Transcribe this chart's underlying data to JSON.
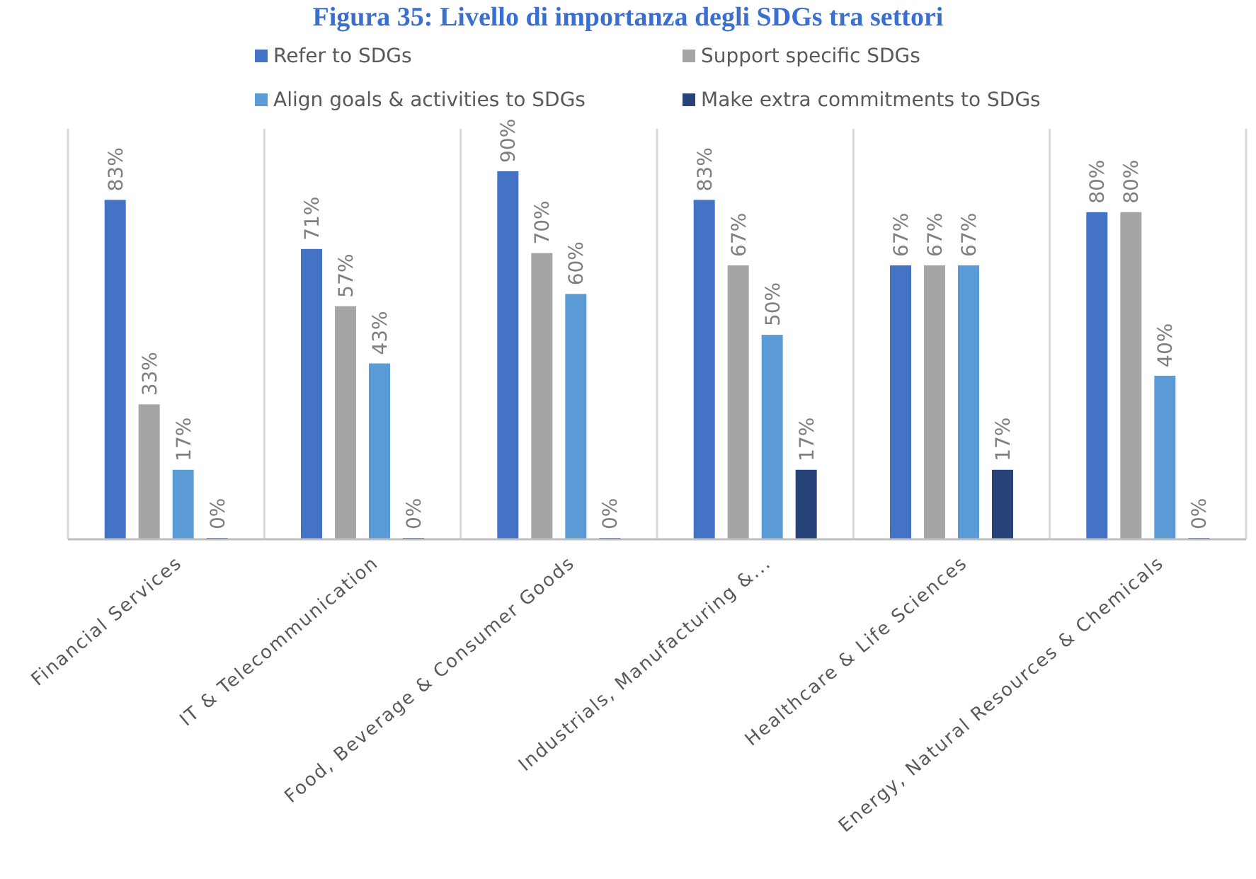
{
  "chart_data": {
    "type": "bar",
    "title": "Figura 35: Livello di importanza degli SDGs tra settori",
    "categories": [
      "Financial Services",
      "IT & Telecommunication",
      "Food, Beverage & Consumer Goods",
      "Industrials, Manufacturing &...",
      "Healthcare & Life Sciences",
      "Energy, Natural Resources & Chemicals"
    ],
    "series": [
      {
        "name": "Refer to SDGs",
        "color": "#4472c4",
        "values": [
          83,
          71,
          90,
          83,
          67,
          80
        ],
        "value_labels": [
          "83%",
          "71%",
          "90%",
          "83%",
          "67%",
          "80%"
        ]
      },
      {
        "name": "Support specific SDGs",
        "color": "#a5a5a5",
        "values": [
          33,
          57,
          70,
          67,
          67,
          80
        ],
        "value_labels": [
          "33%",
          "57%",
          "70%",
          "67%",
          "67%",
          "80%"
        ]
      },
      {
        "name": "Align goals & activities to SDGs",
        "color": "#5b9bd5",
        "values": [
          17,
          43,
          60,
          50,
          67,
          40
        ],
        "value_labels": [
          "17%",
          "43%",
          "60%",
          "50%",
          "67%",
          "40%"
        ]
      },
      {
        "name": "Make extra commitments to SDGs",
        "color": "#264478",
        "values": [
          0,
          0,
          0,
          17,
          17,
          0
        ],
        "value_labels": [
          "0%",
          "0%",
          "0%",
          "17%",
          "17%",
          "0%"
        ]
      }
    ],
    "tick_labels": "x",
    "legend": "top"
  }
}
